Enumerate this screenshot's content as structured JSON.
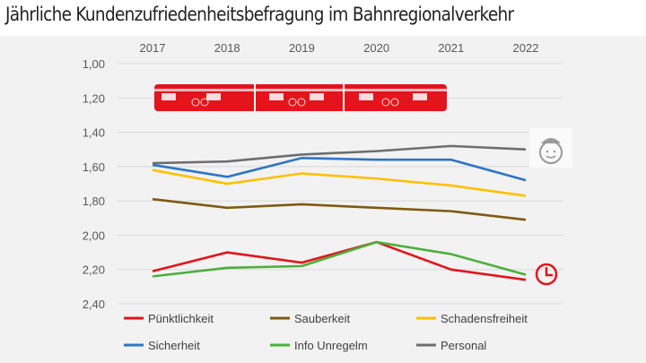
{
  "title": "Jährliche Kundenzufriedenheitsbefragung im Bahnregionalverkehr",
  "chart_data": {
    "type": "line",
    "categories": [
      "2017",
      "2018",
      "2019",
      "2020",
      "2021",
      "2022"
    ],
    "x_axis_position": "top",
    "ylim": [
      1.0,
      2.4
    ],
    "y_inverted": true,
    "y_ticks": [
      "1,00",
      "1,20",
      "1,40",
      "1,60",
      "1,80",
      "2,00",
      "2,20",
      "2,40"
    ],
    "grid": true,
    "legend": "bottom",
    "series": [
      {
        "name": "Pünktlichkeit",
        "color": "#e3141b",
        "values": [
          2.21,
          2.1,
          2.16,
          2.04,
          2.2,
          2.26
        ]
      },
      {
        "name": "Sauberkeit",
        "color": "#7f5a10",
        "values": [
          1.79,
          1.84,
          1.82,
          1.84,
          1.86,
          1.91
        ]
      },
      {
        "name": "Schadensfreiheit",
        "color": "#ffc000",
        "values": [
          1.62,
          1.7,
          1.64,
          1.67,
          1.71,
          1.77
        ]
      },
      {
        "name": "Sicherheit",
        "color": "#2e75c6",
        "values": [
          1.59,
          1.66,
          1.55,
          1.56,
          1.56,
          1.68
        ]
      },
      {
        "name": "Info Unregelm",
        "color": "#4caf3a",
        "values": [
          2.24,
          2.19,
          2.18,
          2.04,
          2.11,
          2.23
        ]
      },
      {
        "name": "Personal",
        "color": "#6e6e6e",
        "values": [
          1.58,
          1.57,
          1.53,
          1.51,
          1.48,
          1.5
        ]
      }
    ],
    "icons": [
      "train-image",
      "conductor-face-icon",
      "clock-icon"
    ]
  }
}
